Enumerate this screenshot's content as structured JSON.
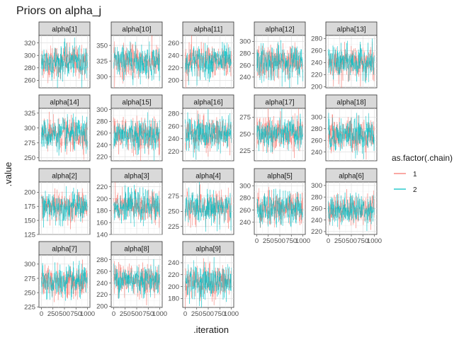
{
  "chart_data": {
    "type": "line",
    "title": "Priors on alpha_j",
    "xlabel": ".iteration",
    "ylabel": ".value",
    "legend": {
      "title": "as.factor(.chain)",
      "position": "right",
      "entries": [
        {
          "label": "1",
          "color": "#F8766D"
        },
        {
          "label": "2",
          "color": "#00BFC4"
        }
      ]
    },
    "x_range": [
      0,
      1000
    ],
    "x_ticks": [
      0,
      250,
      500,
      750,
      1000
    ],
    "x_tick_labels": [
      "0",
      "250",
      "500",
      "750",
      "1000"
    ],
    "panels": [
      {
        "label": "alpha[1]",
        "mean": 290,
        "sd": 13,
        "ylim": [
          248,
          332
        ],
        "yticks": [
          260,
          280,
          300,
          320
        ]
      },
      {
        "label": "alpha[10]",
        "mean": 324,
        "sd": 13,
        "ylim": [
          282,
          366
        ],
        "yticks": [
          300,
          325,
          350
        ]
      },
      {
        "label": "alpha[11]",
        "mean": 230,
        "sd": 13,
        "ylim": [
          188,
          272
        ],
        "yticks": [
          200,
          220,
          240,
          260
        ]
      },
      {
        "label": "alpha[12]",
        "mean": 265,
        "sd": 14,
        "ylim": [
          222,
          310
        ],
        "yticks": [
          240,
          260,
          280,
          300
        ]
      },
      {
        "label": "alpha[13]",
        "mean": 240,
        "sd": 13,
        "ylim": [
          198,
          285
        ],
        "yticks": [
          200,
          220,
          240,
          260,
          280
        ]
      },
      {
        "label": "alpha[14]",
        "mean": 289,
        "sd": 13,
        "ylim": [
          245,
          333
        ],
        "yticks": [
          250,
          275,
          300,
          325
        ]
      },
      {
        "label": "alpha[15]",
        "mean": 258,
        "sd": 14,
        "ylim": [
          213,
          302
        ],
        "yticks": [
          220,
          240,
          260,
          280,
          300
        ]
      },
      {
        "label": "alpha[16]",
        "mean": 248,
        "sd": 13,
        "ylim": [
          205,
          288
        ],
        "yticks": [
          220,
          240,
          260,
          280
        ]
      },
      {
        "label": "alpha[17]",
        "mean": 250,
        "sd": 12,
        "ylim": [
          210,
          288
        ],
        "yticks": [
          225,
          250,
          275
        ]
      },
      {
        "label": "alpha[18]",
        "mean": 270,
        "sd": 14,
        "ylim": [
          225,
          315
        ],
        "yticks": [
          240,
          260,
          280,
          300
        ]
      },
      {
        "label": "alpha[2]",
        "mean": 174,
        "sd": 13,
        "ylim": [
          125,
          218
        ],
        "yticks": [
          125,
          150,
          175,
          200
        ]
      },
      {
        "label": "alpha[3]",
        "mean": 187,
        "sd": 13,
        "ylim": [
          140,
          228
        ],
        "yticks": [
          140,
          160,
          180,
          200,
          220
        ]
      },
      {
        "label": "alpha[4]",
        "mean": 256,
        "sd": 13,
        "ylim": [
          212,
          298
        ],
        "yticks": [
          225,
          250,
          275
        ]
      },
      {
        "label": "alpha[5]",
        "mean": 262,
        "sd": 13,
        "ylim": [
          220,
          306
        ],
        "yticks": [
          240,
          260,
          280,
          300
        ]
      },
      {
        "label": "alpha[6]",
        "mean": 259,
        "sd": 13,
        "ylim": [
          215,
          306
        ],
        "yticks": [
          220,
          240,
          260,
          280,
          300
        ]
      },
      {
        "label": "alpha[7]",
        "mean": 268,
        "sd": 14,
        "ylim": [
          224,
          316
        ],
        "yticks": [
          225,
          250,
          275,
          300
        ]
      },
      {
        "label": "alpha[8]",
        "mean": 246,
        "sd": 13,
        "ylim": [
          198,
          288
        ],
        "yticks": [
          200,
          220,
          240,
          260,
          280
        ]
      },
      {
        "label": "alpha[9]",
        "mean": 208,
        "sd": 14,
        "ylim": [
          165,
          253
        ],
        "yticks": [
          180,
          200,
          220,
          240
        ]
      }
    ]
  }
}
